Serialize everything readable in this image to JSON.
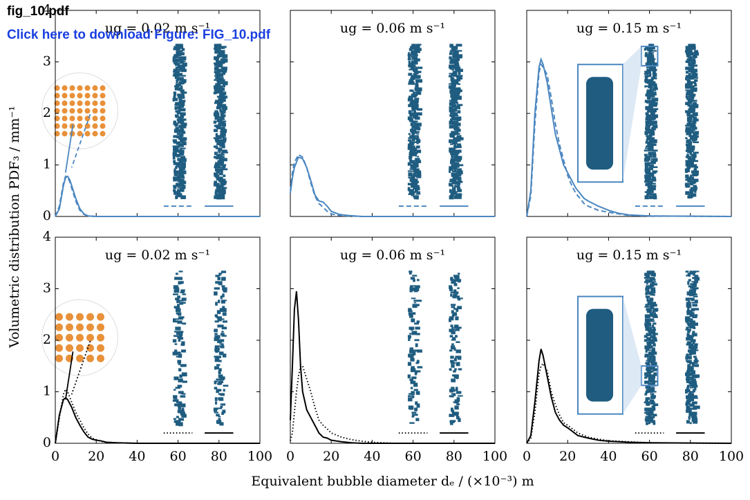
{
  "header": {
    "filename": "fig_10.pdf",
    "link": "Click here to download Figure: FIG_10.pdf"
  },
  "figure": {
    "ylabel": "Volumetric distribution PDF₃ / mm⁻¹",
    "xlabel": "Equivalent bubble diameter dₑ / (×10⁻³) m"
  },
  "chart_data": [
    {
      "type": "line",
      "title": "ug = 0.02 m s⁻¹",
      "xlim": [
        0,
        100
      ],
      "ylim": [
        0,
        4
      ],
      "xticks": [
        0,
        20,
        40,
        60,
        80,
        100
      ],
      "yticks": [
        0,
        1,
        2,
        3,
        4
      ],
      "x_tick_labels": false,
      "y_tick_labels": true,
      "x": [
        0,
        2,
        4,
        5,
        6,
        7,
        8,
        10,
        12,
        14,
        16,
        20,
        30,
        50,
        100
      ],
      "series": [
        {
          "color": "#4a86c0",
          "style": "solid",
          "values": [
            0,
            0.15,
            0.6,
            0.75,
            0.78,
            0.72,
            0.6,
            0.35,
            0.15,
            0.05,
            0.01,
            0,
            0,
            0,
            0
          ]
        },
        {
          "color": "#4a86c0",
          "style": "dashed",
          "values": [
            0,
            0.2,
            0.65,
            0.78,
            0.76,
            0.68,
            0.55,
            0.3,
            0.12,
            0.04,
            0.01,
            0,
            0,
            0,
            0
          ]
        }
      ]
    },
    {
      "type": "line",
      "title": "ug = 0.06 m s⁻¹",
      "xlim": [
        0,
        100
      ],
      "ylim": [
        0,
        4
      ],
      "xticks": [
        0,
        20,
        40,
        60,
        80,
        100
      ],
      "yticks": [
        0,
        1,
        2,
        3,
        4
      ],
      "x_tick_labels": false,
      "y_tick_labels": false,
      "x": [
        0,
        1,
        2,
        4,
        6,
        8,
        10,
        12,
        14,
        16,
        18,
        20,
        24,
        28,
        35,
        50,
        100
      ],
      "series": [
        {
          "color": "#4a86c0",
          "style": "solid",
          "values": [
            0.45,
            0.75,
            0.95,
            1.15,
            1.12,
            0.95,
            0.7,
            0.42,
            0.3,
            0.28,
            0.2,
            0.1,
            0.04,
            0.02,
            0,
            0,
            0
          ]
        },
        {
          "color": "#4a86c0",
          "style": "dashed",
          "values": [
            0.5,
            0.85,
            1.05,
            1.2,
            1.15,
            0.95,
            0.65,
            0.4,
            0.25,
            0.18,
            0.1,
            0.05,
            0.02,
            0.01,
            0,
            0,
            0
          ]
        }
      ]
    },
    {
      "type": "line",
      "title": "ug = 0.15 m s⁻¹",
      "xlim": [
        0,
        100
      ],
      "ylim": [
        0,
        4
      ],
      "xticks": [
        0,
        20,
        40,
        60,
        80,
        100
      ],
      "yticks": [
        0,
        1,
        2,
        3,
        4
      ],
      "x_tick_labels": false,
      "y_tick_labels": false,
      "x": [
        0,
        2,
        4,
        6,
        7,
        8,
        10,
        12,
        14,
        16,
        18,
        20,
        22,
        24,
        26,
        28,
        30,
        35,
        40,
        45,
        50,
        60,
        100
      ],
      "series": [
        {
          "color": "#4a86c0",
          "style": "solid",
          "values": [
            0,
            0.5,
            2.0,
            2.9,
            3.05,
            2.95,
            2.6,
            2.1,
            1.6,
            1.3,
            1.0,
            0.85,
            0.7,
            0.55,
            0.45,
            0.35,
            0.3,
            0.2,
            0.12,
            0.06,
            0.03,
            0.01,
            0
          ]
        },
        {
          "color": "#4a86c0",
          "style": "dashed",
          "values": [
            0,
            0.4,
            1.8,
            2.8,
            2.95,
            2.9,
            2.75,
            2.3,
            1.8,
            1.4,
            1.1,
            0.8,
            0.6,
            0.45,
            0.35,
            0.25,
            0.2,
            0.12,
            0.08,
            0.05,
            0.02,
            0.01,
            0
          ]
        }
      ]
    },
    {
      "type": "line",
      "title": "ug = 0.02 m s⁻¹",
      "xlim": [
        0,
        100
      ],
      "ylim": [
        0,
        4
      ],
      "xticks": [
        0,
        20,
        40,
        60,
        80,
        100
      ],
      "yticks": [
        0,
        1,
        2,
        3,
        4
      ],
      "x_tick_labels": true,
      "y_tick_labels": true,
      "x": [
        0,
        2,
        4,
        5,
        6,
        8,
        10,
        12,
        14,
        16,
        18,
        20,
        22,
        25,
        30,
        40,
        100
      ],
      "series": [
        {
          "color": "#000000",
          "style": "solid",
          "values": [
            0,
            0.55,
            0.85,
            0.88,
            0.85,
            0.7,
            0.5,
            0.35,
            0.22,
            0.12,
            0.08,
            0.06,
            0.05,
            0.02,
            0.01,
            0,
            0
          ]
        },
        {
          "color": "#000000",
          "style": "dotted",
          "values": [
            0,
            0.5,
            0.95,
            1.05,
            1.0,
            0.8,
            0.6,
            0.45,
            0.3,
            0.18,
            0.1,
            0.07,
            0.04,
            0.02,
            0.01,
            0,
            0
          ]
        }
      ]
    },
    {
      "type": "line",
      "title": "ug = 0.06 m s⁻¹",
      "xlim": [
        0,
        100
      ],
      "ylim": [
        0,
        4
      ],
      "xticks": [
        0,
        20,
        40,
        60,
        80,
        100
      ],
      "yticks": [
        0,
        1,
        2,
        3,
        4
      ],
      "x_tick_labels": true,
      "y_tick_labels": false,
      "x": [
        0,
        1,
        2,
        3,
        4,
        5,
        6,
        8,
        10,
        12,
        14,
        16,
        18,
        20,
        25,
        30,
        35,
        40,
        50,
        100
      ],
      "series": [
        {
          "color": "#000000",
          "style": "solid",
          "values": [
            0.45,
            1.5,
            2.6,
            2.95,
            2.4,
            1.5,
            1.0,
            0.65,
            0.5,
            0.35,
            0.2,
            0.12,
            0.1,
            0.06,
            0.03,
            0.01,
            0,
            0,
            0,
            0
          ]
        },
        {
          "color": "#000000",
          "style": "dotted",
          "values": [
            0.05,
            0.2,
            0.6,
            1.0,
            1.3,
            1.5,
            1.5,
            1.25,
            1.0,
            0.7,
            0.45,
            0.35,
            0.28,
            0.2,
            0.12,
            0.07,
            0.04,
            0.02,
            0,
            0
          ]
        }
      ]
    },
    {
      "type": "line",
      "title": "ug = 0.15 m s⁻¹",
      "xlim": [
        0,
        100
      ],
      "ylim": [
        0,
        4
      ],
      "xticks": [
        0,
        20,
        40,
        60,
        80,
        100
      ],
      "yticks": [
        0,
        1,
        2,
        3,
        4
      ],
      "x_tick_labels": true,
      "y_tick_labels": false,
      "x": [
        0,
        2,
        4,
        6,
        7,
        8,
        10,
        12,
        14,
        16,
        18,
        20,
        25,
        30,
        35,
        40,
        50,
        60,
        100
      ],
      "series": [
        {
          "color": "#000000",
          "style": "solid",
          "values": [
            0,
            0.15,
            0.8,
            1.6,
            1.83,
            1.7,
            1.3,
            0.9,
            0.6,
            0.45,
            0.35,
            0.3,
            0.15,
            0.1,
            0.06,
            0.04,
            0.02,
            0.01,
            0
          ]
        },
        {
          "color": "#000000",
          "style": "dotted",
          "values": [
            0,
            0.1,
            0.6,
            1.35,
            1.5,
            1.55,
            1.4,
            1.0,
            0.75,
            0.55,
            0.4,
            0.35,
            0.2,
            0.12,
            0.08,
            0.05,
            0.03,
            0.01,
            0
          ]
        }
      ]
    }
  ]
}
